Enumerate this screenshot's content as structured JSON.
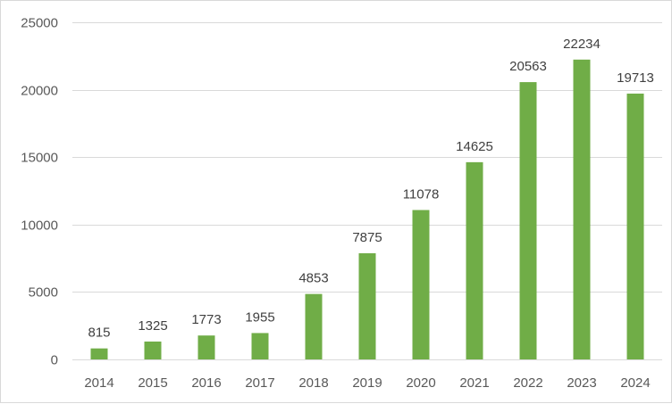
{
  "chart_data": {
    "type": "bar",
    "title": "",
    "xlabel": "",
    "ylabel": "",
    "categories": [
      "2014",
      "2015",
      "2016",
      "2017",
      "2018",
      "2019",
      "2020",
      "2021",
      "2022",
      "2023",
      "2024"
    ],
    "values": [
      815,
      1325,
      1773,
      1955,
      4853,
      7875,
      11078,
      14625,
      20563,
      22234,
      19713
    ],
    "data_labels": [
      "815",
      "1325",
      "1773",
      "1955",
      "4853",
      "7875",
      "11078",
      "14625",
      "20563",
      "22234",
      "19713"
    ],
    "ylim": [
      0,
      25000
    ],
    "y_ticks": [
      0,
      5000,
      10000,
      15000,
      20000,
      25000
    ],
    "y_tick_labels": [
      "0",
      "5000",
      "10000",
      "15000",
      "20000",
      "25000"
    ],
    "grid": true,
    "legend": "none",
    "bar_color": "#70AD47"
  }
}
